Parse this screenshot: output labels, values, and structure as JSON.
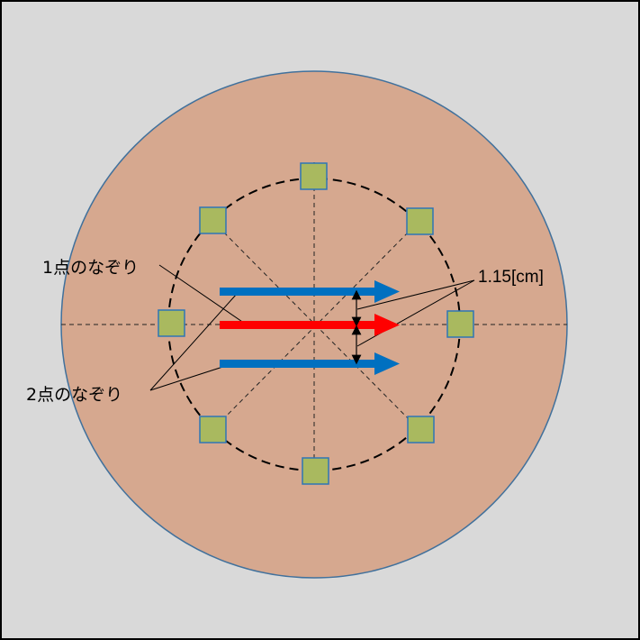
{
  "labels": {
    "one_point_trace": "1点のなぞり",
    "two_point_trace": "2点のなぞり",
    "spacing": "1.15[cm]"
  },
  "colors": {
    "background": "#d9d9d9",
    "disc": "#d6a88f",
    "disc_edge": "#41719c",
    "sensor_fill": "#a9b95f",
    "sensor_edge": "#2e75b6",
    "arrow_two_point": "#0070c0",
    "arrow_one_point": "#ff0000"
  },
  "sensor_count": 8
}
